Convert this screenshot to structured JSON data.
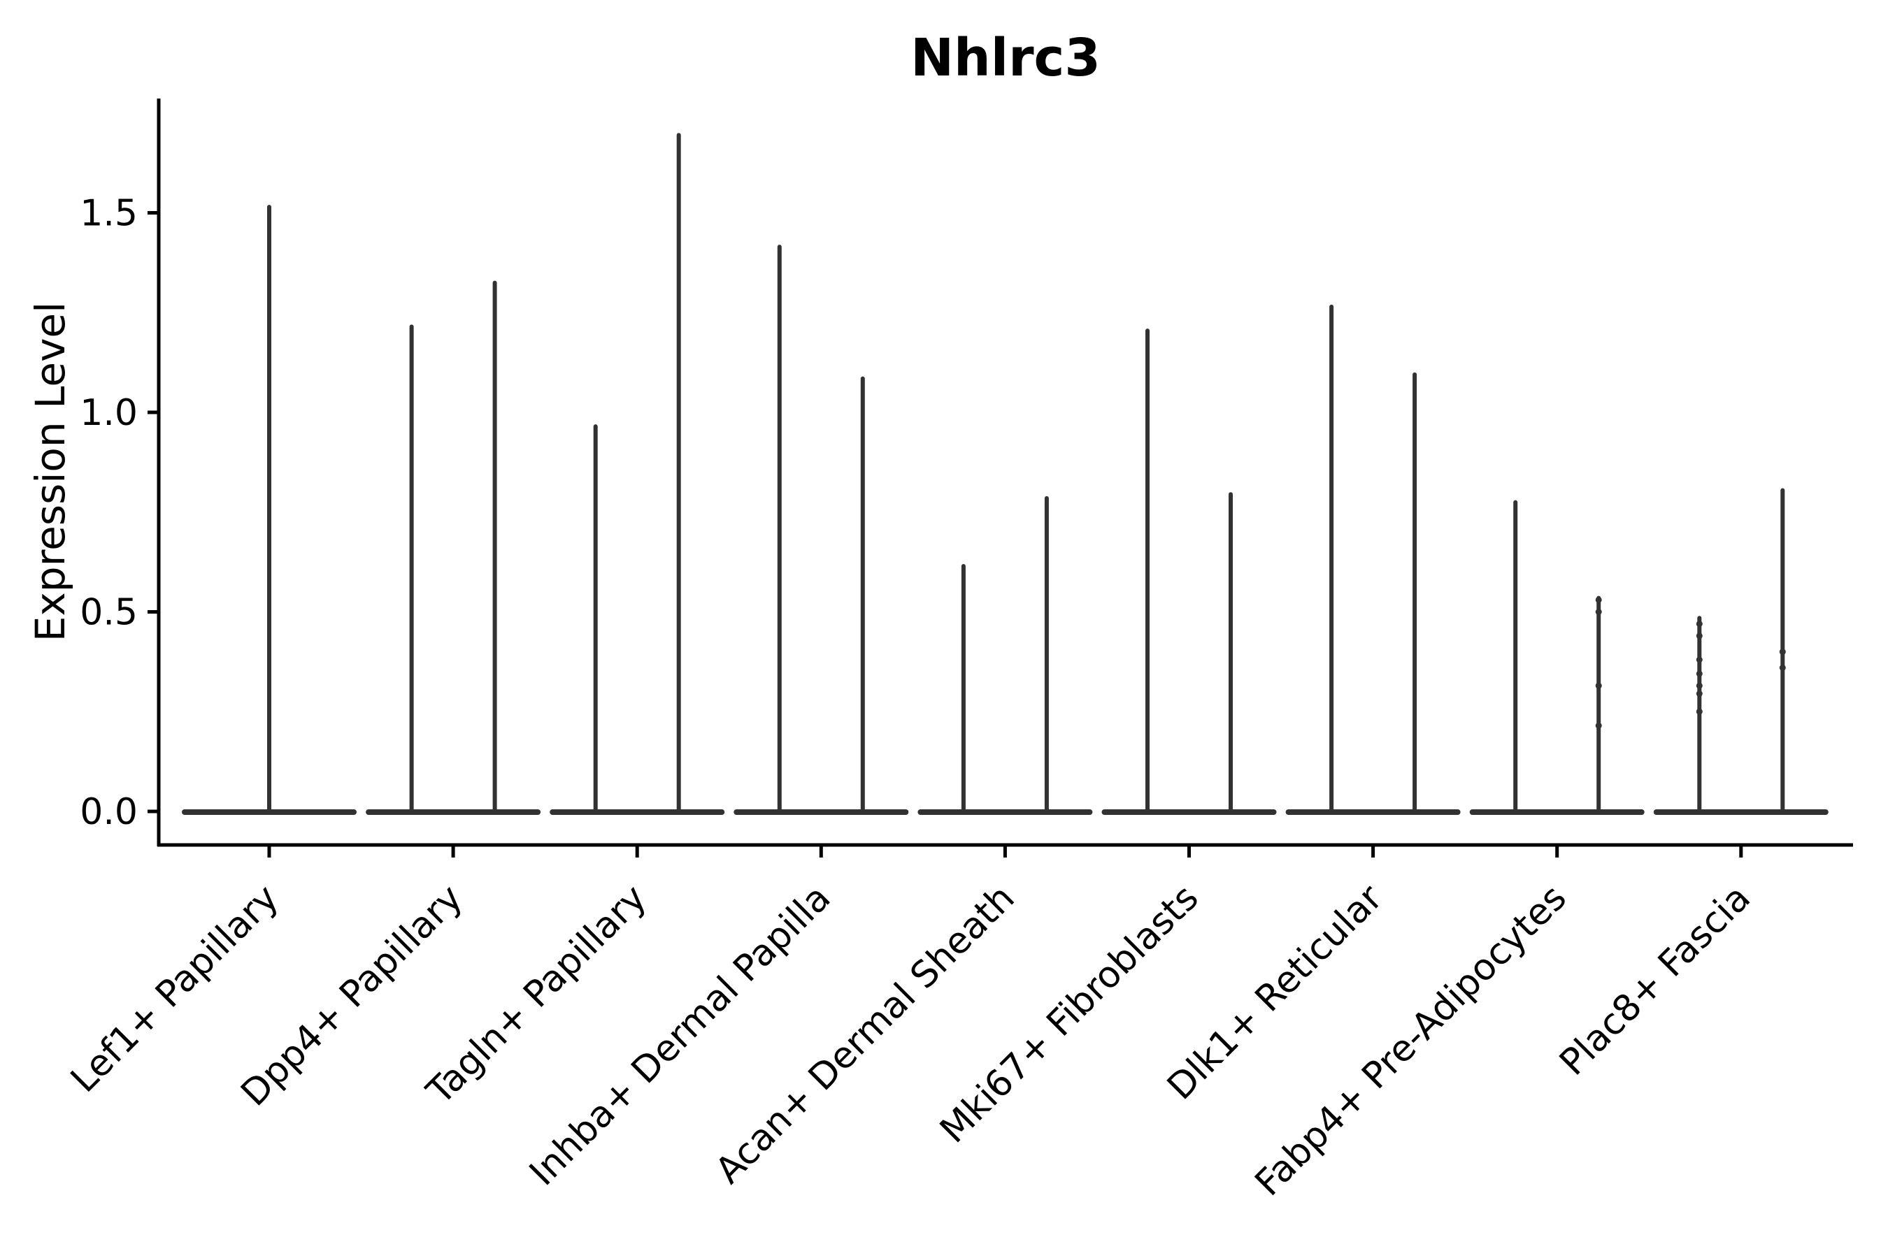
{
  "style": {
    "background": "#ffffff",
    "violin_color": "#323232",
    "axis_color": "#000000",
    "text_color": "#000000"
  },
  "chart_data": {
    "type": "violin",
    "title": "Nhlrc3",
    "xlabel": "",
    "ylabel": "Expression Level",
    "yticks": [
      "0.0",
      "0.5",
      "1.0",
      "1.5"
    ],
    "ytick_values": [
      0.0,
      0.5,
      1.0,
      1.5
    ],
    "ylim": [
      -0.086,
      1.786
    ],
    "grid": false,
    "legend": null,
    "categories": [
      "Lef1+ Papillary",
      "Dpp4+ Papillary",
      "Tagln+ Papillary",
      "Inhba+ Dermal Papilla",
      "Acan+ Dermal Sheath",
      "Mki67+ Fibroblasts",
      "Dlk1+ Reticular",
      "Fabp4+ Pre-Adipocytes",
      "Plac8+ Fascia"
    ],
    "series": [
      {
        "category": "Lef1+ Papillary",
        "violin_maxima": [
          1.52
        ]
      },
      {
        "category": "Dpp4+ Papillary",
        "violin_maxima": [
          1.22,
          1.33
        ]
      },
      {
        "category": "Tagln+ Papillary",
        "violin_maxima": [
          0.97,
          1.7
        ]
      },
      {
        "category": "Inhba+ Dermal Papilla",
        "violin_maxima": [
          1.42,
          1.09
        ]
      },
      {
        "category": "Acan+ Dermal Sheath",
        "violin_maxima": [
          0.62,
          0.79
        ]
      },
      {
        "category": "Mki67+ Fibroblasts",
        "violin_maxima": [
          1.21,
          0.8
        ]
      },
      {
        "category": "Dlk1+ Reticular",
        "violin_maxima": [
          1.27,
          1.1
        ]
      },
      {
        "category": "Fabp4+ Pre-Adipocytes",
        "violin_maxima": [
          0.78,
          0.54
        ]
      },
      {
        "category": "Plac8+ Fascia",
        "violin_maxima": [
          0.49,
          0.81
        ]
      }
    ],
    "baseline_value": 0.0,
    "jitter_points": [
      {
        "category_index": 7,
        "violin_index": 1,
        "values": [
          0.53,
          0.5,
          0.315,
          0.215
        ]
      },
      {
        "category_index": 8,
        "violin_index": 0,
        "values": [
          0.47,
          0.44,
          0.38,
          0.345,
          0.315,
          0.295,
          0.25
        ]
      },
      {
        "category_index": 8,
        "violin_index": 1,
        "values": [
          0.4,
          0.36
        ]
      }
    ]
  }
}
